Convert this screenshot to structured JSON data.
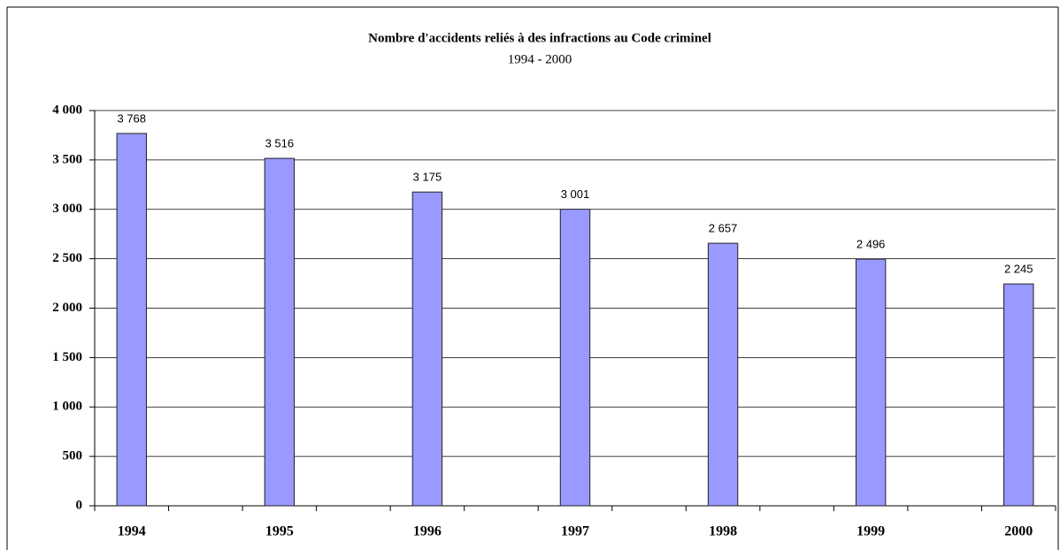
{
  "chart_data": {
    "type": "bar",
    "title": "Nombre d'accidents reliés à des infractions au Code criminel",
    "subtitle": "1994 - 2000",
    "categories": [
      "1994",
      null,
      "1995",
      null,
      "1996",
      null,
      "1997",
      null,
      "1998",
      null,
      "1999",
      null,
      "2000"
    ],
    "values": [
      3768,
      null,
      3516,
      null,
      3175,
      null,
      3001,
      null,
      2657,
      null,
      2496,
      null,
      2245
    ],
    "value_labels": [
      "3 768",
      null,
      "3 516",
      null,
      "3 175",
      null,
      "3 001",
      null,
      "2 657",
      null,
      "2 496",
      null,
      "2 245"
    ],
    "color": "#9999ff",
    "ylim": [
      0,
      4000
    ],
    "yticks": [
      {
        "value": 0,
        "label": "0"
      },
      {
        "value": 500,
        "label": "500"
      },
      {
        "value": 1000,
        "label": "1 000"
      },
      {
        "value": 1500,
        "label": "1 500"
      },
      {
        "value": 2000,
        "label": "2 000"
      },
      {
        "value": 2500,
        "label": "2 500"
      },
      {
        "value": 3000,
        "label": "3 000"
      },
      {
        "value": 3500,
        "label": "3 500"
      },
      {
        "value": 4000,
        "label": "4 000"
      }
    ],
    "grid": true
  }
}
